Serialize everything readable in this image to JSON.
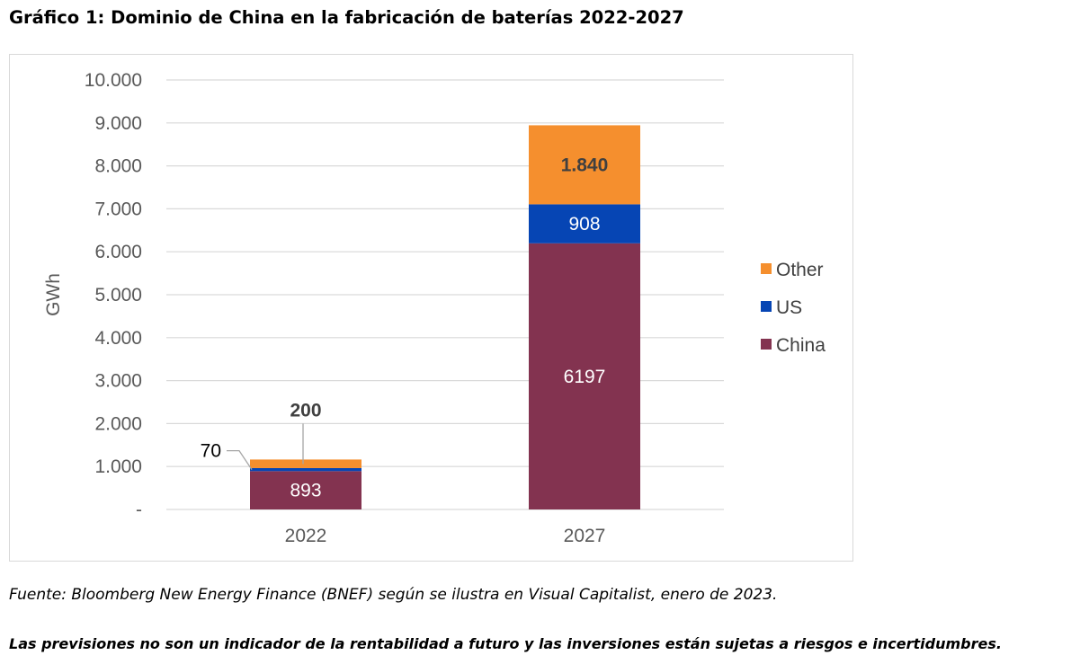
{
  "title": "Gráfico 1: Dominio de China en la fabricación de baterías 2022-2027",
  "source": "Fuente: Bloomberg New Energy Finance (BNEF) según se ilustra en Visual Capitalist, enero de 2023.",
  "disclaimer": "Las previsiones no son un indicador de la rentabilidad a futuro y las inversiones están sujetas a riesgos e incertidumbres.",
  "chart_data": {
    "type": "bar",
    "stacked": true,
    "categories": [
      "2022",
      "2027"
    ],
    "series": [
      {
        "name": "China",
        "values": [
          893,
          6197
        ],
        "labels": [
          "893",
          "6197"
        ],
        "color": "#833350"
      },
      {
        "name": "US",
        "values": [
          70,
          908
        ],
        "labels": [
          "70",
          "908"
        ],
        "color": "#0645b4"
      },
      {
        "name": "Other",
        "values": [
          200,
          1840
        ],
        "labels": [
          "200",
          "1.840"
        ],
        "color": "#f58f2e"
      }
    ],
    "ylabel": "GWh",
    "xlabel": "",
    "ylim": [
      0,
      10000
    ],
    "yticks": [
      "-",
      "1.000",
      "2.000",
      "3.000",
      "4.000",
      "5.000",
      "6.000",
      "7.000",
      "8.000",
      "9.000",
      "10.000"
    ],
    "grid": true,
    "legend": {
      "position": "right",
      "order": [
        "Other",
        "US",
        "China"
      ]
    }
  }
}
